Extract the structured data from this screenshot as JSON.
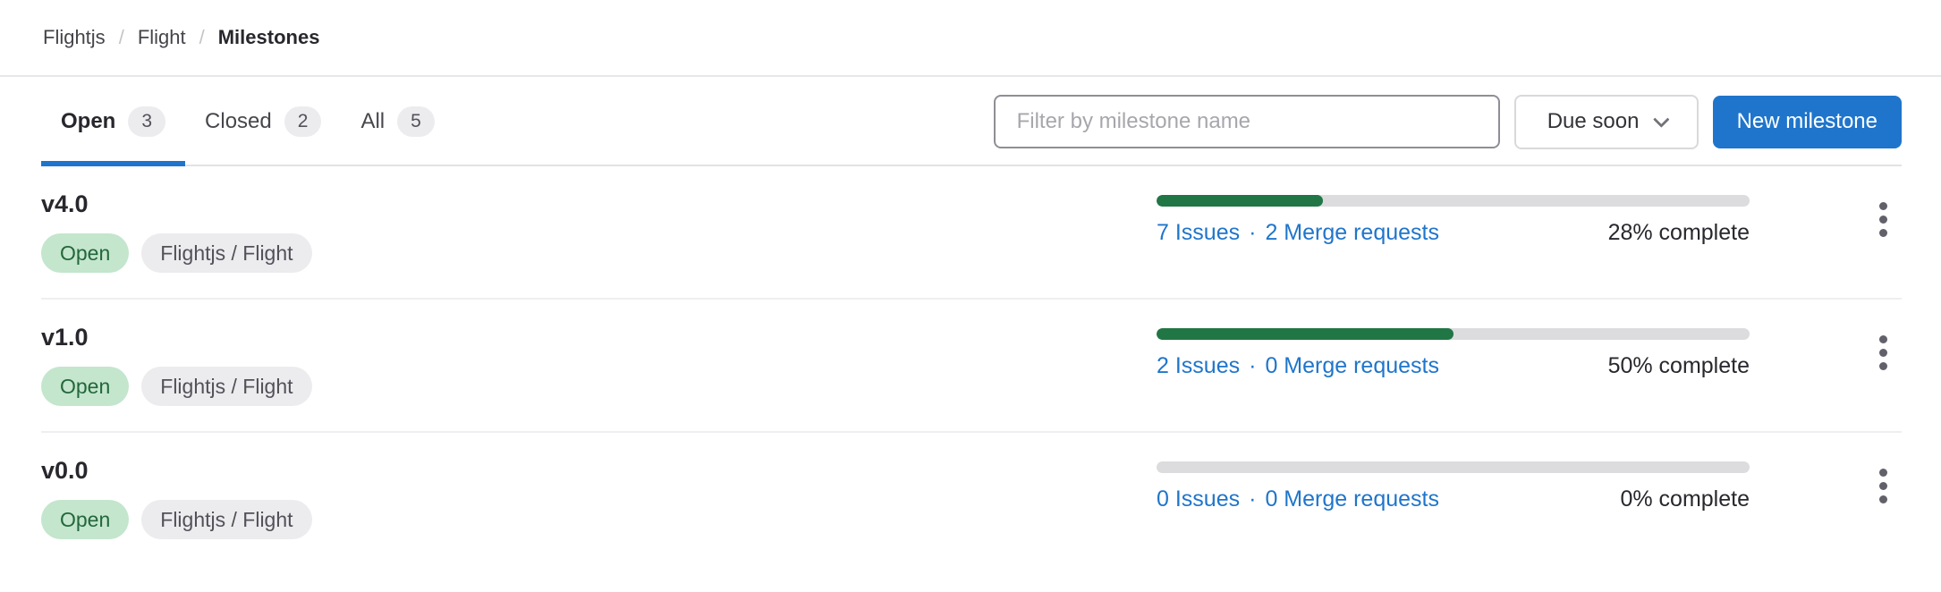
{
  "breadcrumb": {
    "group_label": "Flightjs",
    "project_label": "Flight",
    "current_label": "Milestones",
    "separator": "/"
  },
  "tabs": {
    "open": {
      "label": "Open",
      "count": "3"
    },
    "closed": {
      "label": "Closed",
      "count": "2"
    },
    "all": {
      "label": "All",
      "count": "5"
    }
  },
  "toolbar": {
    "filter_placeholder": "Filter by milestone name",
    "sort_label": "Due soon",
    "new_milestone_label": "New milestone"
  },
  "milestones": [
    {
      "title": "v4.0",
      "status_label": "Open",
      "project_label": "Flightjs / Flight",
      "issues_label": "7 Issues",
      "dot": "·",
      "merge_requests_label": "2 Merge requests",
      "complete_label": "28% complete",
      "progress_pct": 28
    },
    {
      "title": "v1.0",
      "status_label": "Open",
      "project_label": "Flightjs / Flight",
      "issues_label": "2 Issues",
      "dot": "·",
      "merge_requests_label": "0 Merge requests",
      "complete_label": "50% complete",
      "progress_pct": 50
    },
    {
      "title": "v0.0",
      "status_label": "Open",
      "project_label": "Flightjs / Flight",
      "issues_label": "0 Issues",
      "dot": "·",
      "merge_requests_label": "0 Merge requests",
      "complete_label": "0% complete",
      "progress_pct": 0
    }
  ],
  "icons": {
    "chevron_down": "chevron-down-icon",
    "kebab": "vertical-ellipsis-icon"
  },
  "colors": {
    "accent_blue": "#1f75cb",
    "progress_green": "#217645",
    "progress_track": "#dcdcde",
    "badge_green_bg": "#c3e6cd",
    "badge_green_text": "#24663b",
    "badge_gray_bg": "#ececef",
    "badge_gray_text": "#535158",
    "divider": "#efeff1"
  }
}
